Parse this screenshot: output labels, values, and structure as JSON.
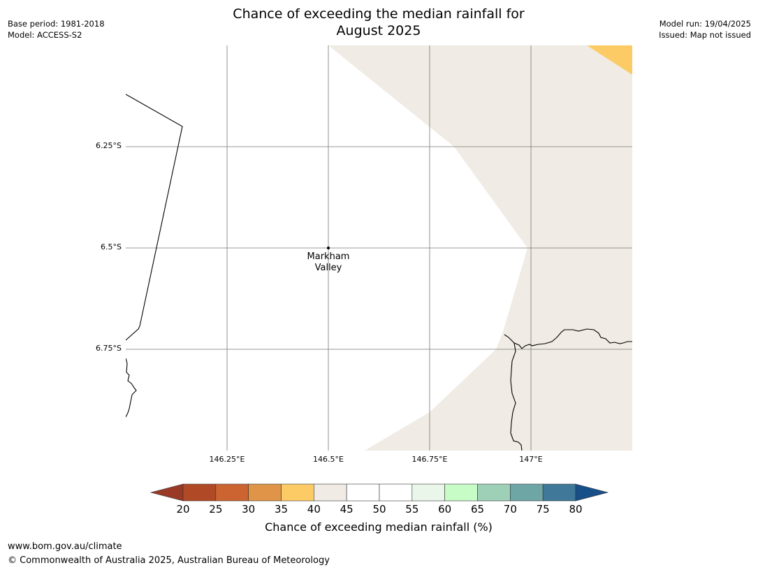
{
  "title_line1": "Chance of exceeding the median rainfall for",
  "title_line2": "August 2025",
  "meta_left": [
    "Base period: 1981-2018",
    "Model: ACCESS-S2"
  ],
  "meta_right": [
    "Model run: 19/04/2025",
    "Issued: Map not issued"
  ],
  "latitude_ticks": [
    "6.25°S",
    "6.5°S",
    "6.75°S"
  ],
  "longitude_ticks": [
    "146.25°E",
    "146.5°E",
    "146.75°E",
    "147°E"
  ],
  "place": {
    "name_line1": "Markham",
    "name_line2": "Valley"
  },
  "colorbar": {
    "label": "Chance of exceeding median rainfall (%)",
    "ticks": [
      "20",
      "25",
      "30",
      "35",
      "40",
      "45",
      "50",
      "55",
      "60",
      "65",
      "70",
      "75",
      "80"
    ],
    "under_color": "#9a3a26",
    "over_color": "#174f88",
    "colors": [
      "#b04a26",
      "#cc6431",
      "#e09447",
      "#fdcb66",
      "#f0ebe4",
      "#ffffff",
      "#ffffff",
      "#eaf6ea",
      "#c7fcc7",
      "#9ed0b8",
      "#6ea6a5",
      "#3f7898"
    ]
  },
  "map_colors": {
    "background": "#ffffff",
    "band_40_45": "#f0ebe4",
    "band_35_40": "#fdcb66",
    "coastline": "#000000",
    "gridline": "#777777"
  },
  "footer": {
    "url": "www.bom.gov.au/climate",
    "copyright": "© Commonwealth of Australia 2025, Australian Bureau of Meteorology"
  }
}
